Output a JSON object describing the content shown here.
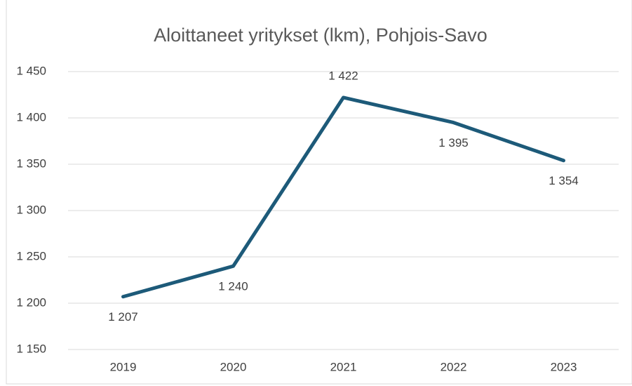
{
  "chart_data": {
    "type": "line",
    "title": "Aloittaneet yritykset (lkm), Pohjois-Savo",
    "categories": [
      "2019",
      "2020",
      "2021",
      "2022",
      "2023"
    ],
    "series": [
      {
        "name": "Aloittaneet yritykset",
        "color": "#1d5a79",
        "values": [
          1207,
          1240,
          1422,
          1395,
          1354
        ],
        "value_labels": [
          "1 207",
          "1 240",
          "1 422",
          "1 395",
          "1 354"
        ]
      }
    ],
    "ylim": [
      1150,
      1450
    ],
    "yticks": [
      {
        "value": 1150,
        "label": "1 150"
      },
      {
        "value": 1200,
        "label": "1 200"
      },
      {
        "value": 1250,
        "label": "1 250"
      },
      {
        "value": 1300,
        "label": "1 300"
      },
      {
        "value": 1350,
        "label": "1 350"
      },
      {
        "value": 1400,
        "label": "1 400"
      },
      {
        "value": 1450,
        "label": "1 450"
      }
    ],
    "grid": true
  }
}
